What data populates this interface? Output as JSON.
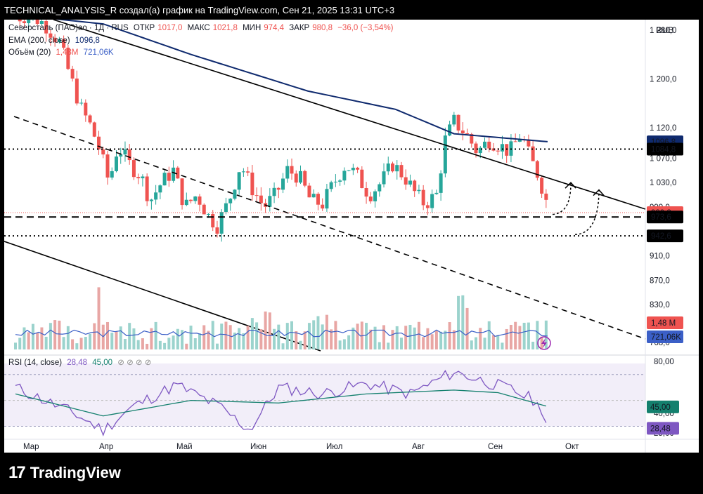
{
  "header": {
    "title": "TECHNICAL_ANALYSIS_R создал(а) график на TradingView.com, Сен 21, 2025 13:31 UTC+3"
  },
  "legend": {
    "symbol": "Северсталь (ПАО)ао · 1Д · RUS",
    "open_label": "ОТКР",
    "open": "1017,0",
    "high_label": "МАКС",
    "high": "1021,8",
    "low_label": "МИН",
    "low": "974,4",
    "close_label": "ЗАКР",
    "close": "980,8",
    "change": "−36,0 (−3,54%)",
    "ema_label": "EMA (200, close)",
    "ema_value": "1096,8",
    "vol_label": "Объём (20)",
    "vol_value1": "1,48M",
    "vol_value2": "721,06K",
    "rsi_label": "RSI (14, close)",
    "rsi_value": "28,48",
    "rsi_ma": "45,00",
    "rsi_extra": "⊘ ⊘ ⊘ ⊘"
  },
  "currency": "RUB",
  "price_axis": [
    "1 280,0",
    "1 200,0",
    "1 120,0",
    "1 070,0",
    "1 030,0",
    "990,0",
    "910,0",
    "870,0",
    "830,0",
    "768,0"
  ],
  "price_tags": [
    {
      "text": "1096,8",
      "color": "#0f2a6e"
    },
    {
      "text": "1084,8",
      "color": "#000000"
    },
    {
      "text": "980,8",
      "color": "#ef5350"
    },
    {
      "text": "973,6",
      "color": "#000000"
    },
    {
      "text": "942,6",
      "color": "#000000"
    },
    {
      "text": "1,48 M",
      "color": "#ef5350"
    },
    {
      "text": "721,06K",
      "color": "#3b5fc7"
    }
  ],
  "rsi_axis": [
    "80,00",
    "40,00",
    "25,00"
  ],
  "rsi_tags": [
    {
      "text": "45,00",
      "color": "#14806e"
    },
    {
      "text": "28,48",
      "color": "#7e57c2"
    }
  ],
  "time_axis": [
    "Мар",
    "Апр",
    "Май",
    "Июн",
    "Июл",
    "Авг",
    "Сен",
    "Окт"
  ],
  "brand": "TradingView",
  "colors": {
    "up": "#26a69a",
    "down": "#ef5350",
    "ema": "#0f2a6e",
    "rsi": "#7e57c2",
    "rsi_ma": "#14806e"
  },
  "chart_data": {
    "type": "line",
    "title": "Северсталь (ПАО)ао · 1Д · RUS",
    "xlabel": "",
    "ylabel": "",
    "x": [
      "Мар",
      "Апр",
      "Май",
      "Июн",
      "Июл",
      "Авг",
      "Сен"
    ],
    "series": [
      {
        "name": "close",
        "values": [
          1300,
          1140,
          1010,
          975,
          1010,
          1110,
          980.8
        ]
      },
      {
        "name": "EMA (200, close)",
        "values": [
          1305,
          1270,
          1235,
          1190,
          1160,
          1110,
          1096.8
        ]
      }
    ],
    "ylim": [
      768,
      1320
    ],
    "levels": [
      1084.8,
      973.6,
      942.6
    ],
    "rsi": {
      "last": 28.48,
      "ma": 45.0,
      "ylim": [
        20,
        85
      ],
      "bands": [
        30,
        70
      ]
    }
  }
}
